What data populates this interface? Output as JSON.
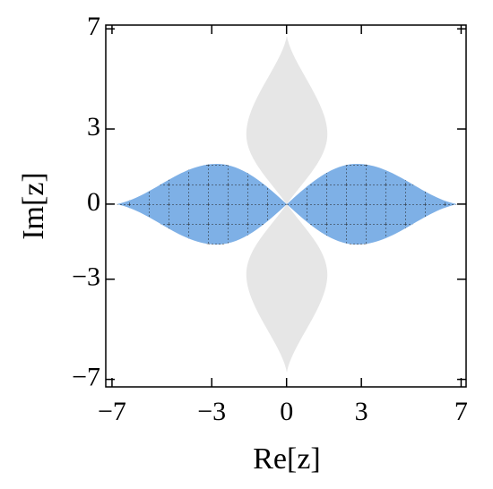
{
  "chart_data": {
    "type": "region",
    "xlabel": "Re[z]",
    "ylabel": "Im[z]",
    "xlim": [
      -7.25,
      7.2
    ],
    "ylim": [
      -7.3,
      7.15
    ],
    "xticks": [
      {
        "value": -7,
        "label": "−7"
      },
      {
        "value": -3,
        "label": "−3"
      },
      0,
      3,
      7
    ],
    "yticks": [
      {
        "value": -7,
        "label": "−7"
      },
      {
        "value": -3,
        "label": "−3"
      },
      0,
      3,
      7
    ]
  }
}
